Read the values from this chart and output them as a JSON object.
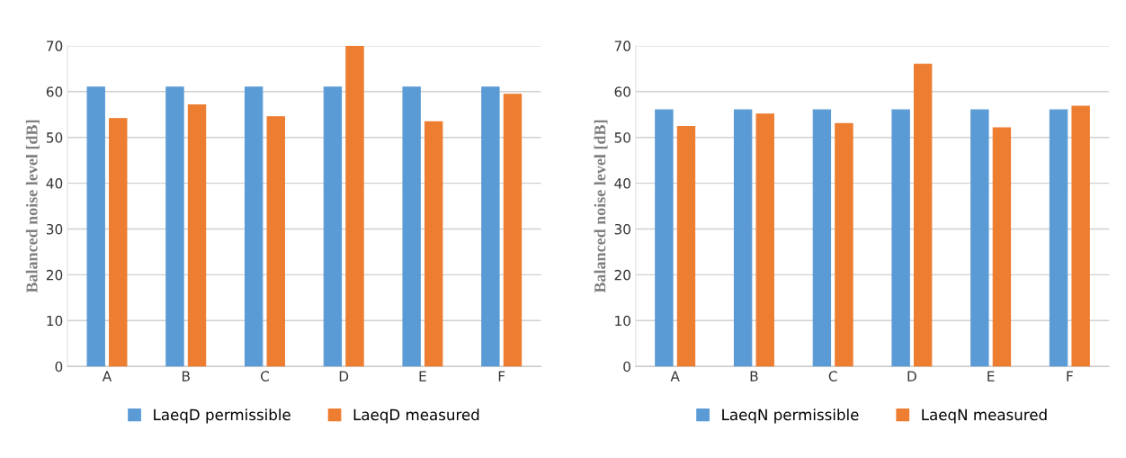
{
  "chart_data": [
    {
      "type": "bar",
      "ylabel": "Balanced noise level [dB]",
      "categories": [
        "A",
        "B",
        "C",
        "D",
        "E",
        "F"
      ],
      "series": [
        {
          "name": "LaeqD permissible",
          "color": "#5b9bd5",
          "values": [
            61,
            61,
            61,
            61,
            61,
            61
          ]
        },
        {
          "name": "LaeqD measured",
          "color": "#ed7d31",
          "values": [
            54.1,
            57.1,
            54.5,
            70,
            53.4,
            59.4
          ]
        }
      ],
      "ylim": [
        0,
        70
      ],
      "yticks": [
        0,
        10,
        20,
        30,
        40,
        50,
        60,
        70
      ],
      "grid": "y",
      "legend": "bottom"
    },
    {
      "type": "bar",
      "ylabel": "Balanced noise level [dB]",
      "categories": [
        "A",
        "B",
        "C",
        "D",
        "E",
        "F"
      ],
      "series": [
        {
          "name": "LaeqN permissible",
          "color": "#5b9bd5",
          "values": [
            56,
            56,
            56,
            56,
            56,
            56
          ]
        },
        {
          "name": "LaeqN measured",
          "color": "#ed7d31",
          "values": [
            52.4,
            55.1,
            53,
            66,
            52.1,
            56.8
          ]
        }
      ],
      "ylim": [
        0,
        70
      ],
      "yticks": [
        0,
        10,
        20,
        30,
        40,
        50,
        60,
        70
      ],
      "grid": "y",
      "legend": "bottom"
    }
  ]
}
